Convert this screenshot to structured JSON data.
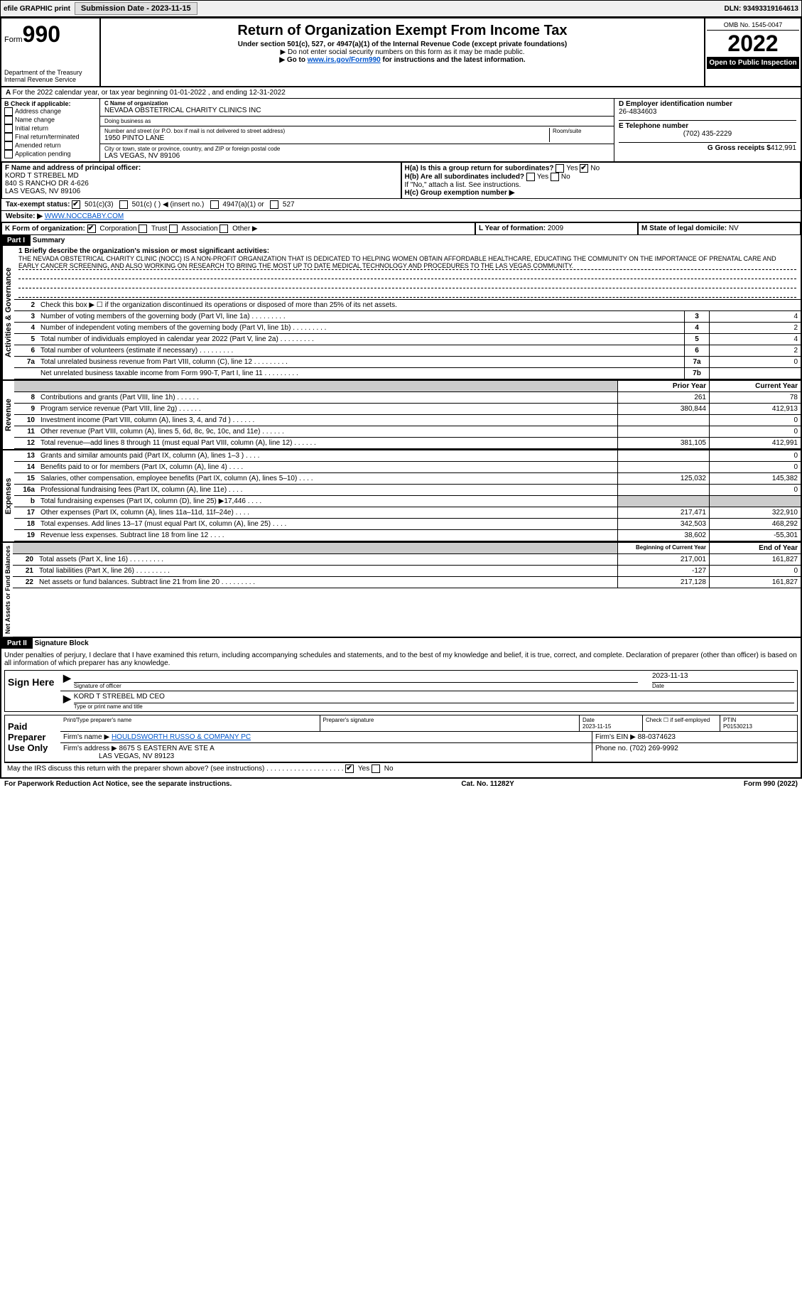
{
  "header": {
    "efile_label": "efile GRAPHIC print",
    "submission_label": "Submission Date - 2023-11-15",
    "dln": "DLN: 93493319164613"
  },
  "form": {
    "form_word": "Form",
    "form_number": "990",
    "title": "Return of Organization Exempt From Income Tax",
    "subtitle": "Under section 501(c), 527, or 4947(a)(1) of the Internal Revenue Code (except private foundations)",
    "note1": "▶ Do not enter social security numbers on this form as it may be made public.",
    "note2_prefix": "▶ Go to ",
    "note2_link": "www.irs.gov/Form990",
    "note2_suffix": " for instructions and the latest information.",
    "dept": "Department of the Treasury",
    "irs": "Internal Revenue Service",
    "omb": "OMB No. 1545-0047",
    "year": "2022",
    "open_public": "Open to Public Inspection"
  },
  "a_line": "For the 2022 calendar year, or tax year beginning 01-01-2022    , and ending 12-31-2022",
  "section_b": {
    "label": "B Check if applicable:",
    "items": [
      "Address change",
      "Name change",
      "Initial return",
      "Final return/terminated",
      "Amended return",
      "Application pending"
    ]
  },
  "section_c": {
    "name_label": "C Name of organization",
    "name": "NEVADA OBSTETRICAL CHARITY CLINICS INC",
    "dba_label": "Doing business as",
    "dba": "",
    "street_label": "Number and street (or P.O. box if mail is not delivered to street address)",
    "room_label": "Room/suite",
    "street": "1950 PINTO LANE",
    "city_label": "City or town, state or province, country, and ZIP or foreign postal code",
    "city": "LAS VEGAS, NV  89106"
  },
  "section_d": {
    "label": "D Employer identification number",
    "ein": "26-4834603"
  },
  "section_e": {
    "label": "E Telephone number",
    "phone": "(702) 435-2229"
  },
  "section_g": {
    "label": "G Gross receipts $",
    "amount": "412,991"
  },
  "section_f": {
    "label": "F  Name and address of principal officer:",
    "name": "KORD T STREBEL MD",
    "addr1": "840 S RANCHO DR 4-626",
    "addr2": "LAS VEGAS, NV  89106"
  },
  "section_h": {
    "ha_label": "H(a)  Is this a group return for subordinates?",
    "hb_label": "H(b)  Are all subordinates included?",
    "hb_note": "If \"No,\" attach a list. See instructions.",
    "hc_label": "H(c)  Group exemption number ▶"
  },
  "section_i": {
    "label": "Tax-exempt status:",
    "opt1": "501(c)(3)",
    "opt2": "501(c) (   ) ◀ (insert no.)",
    "opt3": "4947(a)(1) or",
    "opt4": "527"
  },
  "section_j": {
    "label": "Website: ▶",
    "url": "WWW.NOCCBABY.COM"
  },
  "section_k": {
    "label": "K Form of organization:",
    "opts": [
      "Corporation",
      "Trust",
      "Association",
      "Other ▶"
    ]
  },
  "section_l": {
    "label": "L Year of formation:",
    "value": "2009"
  },
  "section_m": {
    "label": "M State of legal domicile:",
    "value": "NV"
  },
  "part1": {
    "header": "Part I",
    "title": "Summary",
    "line1_label": "1 Briefly describe the organization's mission or most significant activities:",
    "mission": "THE NEVADA OBSTETRICAL CHARITY CLINIC (NOCC) IS A NON-PROFIT ORGANIZATION THAT IS DEDICATED TO HELPING WOMEN OBTAIN AFFORDABLE HEALTHCARE, EDUCATING THE COMMUNITY ON THE IMPORTANCE OF PRENATAL CARE AND EARLY CANCER SCREENING, AND ALSO WORKING ON RESEARCH TO BRING THE MOST UP TO DATE MEDICAL TECHNOLOGY AND PROCEDURES TO THE LAS VEGAS COMMUNITY.",
    "line2": "Check this box ▶ ☐  if the organization discontinued its operations or disposed of more than 25% of its net assets.",
    "governance_label": "Activities & Governance",
    "revenue_label": "Revenue",
    "expenses_label": "Expenses",
    "netassets_label": "Net Assets or Fund Balances",
    "gov_rows": [
      {
        "no": "3",
        "desc": "Number of voting members of the governing body (Part VI, line 1a)",
        "box": "3",
        "val": "4"
      },
      {
        "no": "4",
        "desc": "Number of independent voting members of the governing body (Part VI, line 1b)",
        "box": "4",
        "val": "2"
      },
      {
        "no": "5",
        "desc": "Total number of individuals employed in calendar year 2022 (Part V, line 2a)",
        "box": "5",
        "val": "4"
      },
      {
        "no": "6",
        "desc": "Total number of volunteers (estimate if necessary)",
        "box": "6",
        "val": "2"
      },
      {
        "no": "7a",
        "desc": "Total unrelated business revenue from Part VIII, column (C), line 12",
        "box": "7a",
        "val": "0"
      },
      {
        "no": "",
        "desc": "Net unrelated business taxable income from Form 990-T, Part I, line 11",
        "box": "7b",
        "val": ""
      }
    ],
    "col_prior": "Prior Year",
    "col_current": "Current Year",
    "rev_rows": [
      {
        "no": "8",
        "desc": "Contributions and grants (Part VIII, line 1h)",
        "prior": "261",
        "current": "78"
      },
      {
        "no": "9",
        "desc": "Program service revenue (Part VIII, line 2g)",
        "prior": "380,844",
        "current": "412,913"
      },
      {
        "no": "10",
        "desc": "Investment income (Part VIII, column (A), lines 3, 4, and 7d )",
        "prior": "",
        "current": "0"
      },
      {
        "no": "11",
        "desc": "Other revenue (Part VIII, column (A), lines 5, 6d, 8c, 9c, 10c, and 11e)",
        "prior": "",
        "current": "0"
      },
      {
        "no": "12",
        "desc": "Total revenue—add lines 8 through 11 (must equal Part VIII, column (A), line 12)",
        "prior": "381,105",
        "current": "412,991"
      }
    ],
    "exp_rows": [
      {
        "no": "13",
        "desc": "Grants and similar amounts paid (Part IX, column (A), lines 1–3 )",
        "prior": "",
        "current": "0"
      },
      {
        "no": "14",
        "desc": "Benefits paid to or for members (Part IX, column (A), line 4)",
        "prior": "",
        "current": "0"
      },
      {
        "no": "15",
        "desc": "Salaries, other compensation, employee benefits (Part IX, column (A), lines 5–10)",
        "prior": "125,032",
        "current": "145,382"
      },
      {
        "no": "16a",
        "desc": "Professional fundraising fees (Part IX, column (A), line 11e)",
        "prior": "",
        "current": "0"
      },
      {
        "no": "b",
        "desc": "Total fundraising expenses (Part IX, column (D), line 25) ▶17,446",
        "prior": "grey",
        "current": "grey"
      },
      {
        "no": "17",
        "desc": "Other expenses (Part IX, column (A), lines 11a–11d, 11f–24e)",
        "prior": "217,471",
        "current": "322,910"
      },
      {
        "no": "18",
        "desc": "Total expenses. Add lines 13–17 (must equal Part IX, column (A), line 25)",
        "prior": "342,503",
        "current": "468,292"
      },
      {
        "no": "19",
        "desc": "Revenue less expenses. Subtract line 18 from line 12",
        "prior": "38,602",
        "current": "-55,301"
      }
    ],
    "col_begin": "Beginning of Current Year",
    "col_end": "End of Year",
    "net_rows": [
      {
        "no": "20",
        "desc": "Total assets (Part X, line 16)",
        "prior": "217,001",
        "current": "161,827"
      },
      {
        "no": "21",
        "desc": "Total liabilities (Part X, line 26)",
        "prior": "-127",
        "current": "0"
      },
      {
        "no": "22",
        "desc": "Net assets or fund balances. Subtract line 21 from line 20",
        "prior": "217,128",
        "current": "161,827"
      }
    ]
  },
  "part2": {
    "header": "Part II",
    "title": "Signature Block",
    "declaration": "Under penalties of perjury, I declare that I have examined this return, including accompanying schedules and statements, and to the best of my knowledge and belief, it is true, correct, and complete. Declaration of preparer (other than officer) is based on all information of which preparer has any knowledge.",
    "sign_here": "Sign Here",
    "sig_officer": "Signature of officer",
    "sig_date": "2023-11-13",
    "date_label": "Date",
    "officer_name": "KORD T STREBEL MD  CEO",
    "type_label": "Type or print name and title",
    "paid_label": "Paid Preparer Use Only",
    "prep_name_label": "Print/Type preparer's name",
    "prep_sig_label": "Preparer's signature",
    "prep_date": "2023-11-15",
    "check_self": "Check ☐ if self-employed",
    "ptin_label": "PTIN",
    "ptin": "P01530213",
    "firm_name_label": "Firm's name    ▶",
    "firm_name": "HOULDSWORTH RUSSO & COMPANY PC",
    "firm_ein_label": "Firm's EIN ▶",
    "firm_ein": "88-0374623",
    "firm_addr_label": "Firm's address ▶",
    "firm_addr1": "8675 S EASTERN AVE STE A",
    "firm_addr2": "LAS VEGAS, NV  89123",
    "phone_label": "Phone no.",
    "phone": "(702) 269-9992",
    "discuss": "May the IRS discuss this return with the preparer shown above? (see instructions)"
  },
  "footer": {
    "left": "For Paperwork Reduction Act Notice, see the separate instructions.",
    "center": "Cat. No. 11282Y",
    "right": "Form 990 (2022)"
  }
}
